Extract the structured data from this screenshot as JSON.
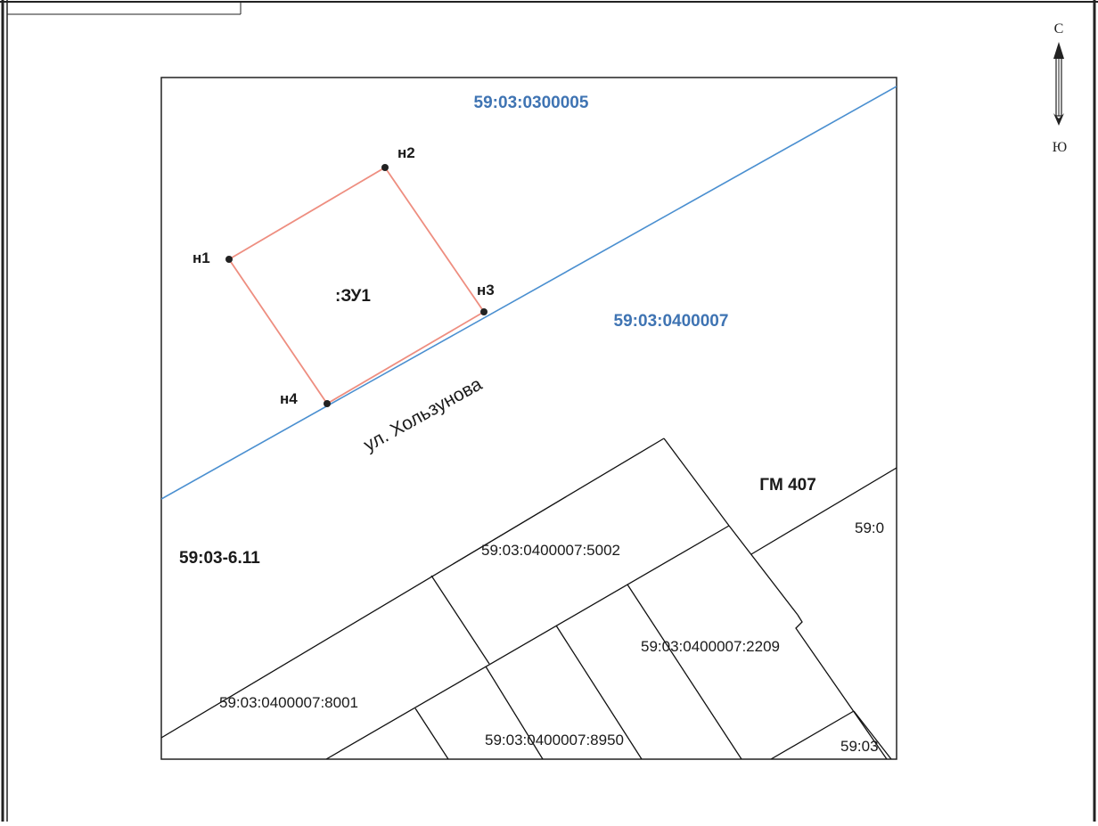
{
  "colors": {
    "boundary_red": "#ee8e80",
    "street_blue": "#4a8fd0",
    "quarter_label_blue": "#3f74b3",
    "parcel_line": "#111111",
    "frame": "#222222"
  },
  "north_arrow": {
    "icon": "north-arrow-icon",
    "north": "С",
    "south": "Ю"
  },
  "zones": {
    "territorial_zone": "59:03-6.11",
    "hm_zone": "ГМ 407"
  },
  "quarters": {
    "north": "59:03:0300005",
    "south": "59:03:0400007"
  },
  "new_parcel": {
    "label": ":ЗУ1",
    "points": [
      {
        "label": "н1"
      },
      {
        "label": "н2"
      },
      {
        "label": "н3"
      },
      {
        "label": "н4"
      }
    ]
  },
  "street": {
    "name": "ул. Хользунова"
  },
  "parcels": {
    "p5002": "59:03:0400007:5002",
    "p2209": "59:03:0400007:2209",
    "p8001": "59:03:0400007:8001",
    "p8950": "59:03:0400007:8950",
    "edge_right_top": "59:0",
    "edge_right_bottom": "59:03"
  }
}
